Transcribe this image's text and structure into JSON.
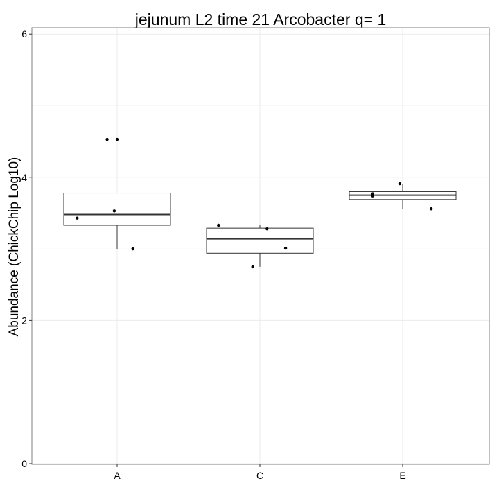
{
  "chart_data": {
    "type": "box",
    "title": "jejunum L2 time 21 Arcobacter q= 1",
    "xlabel": "",
    "ylabel": "Abundance (ChickChip Log10)",
    "categories": [
      "A",
      "C",
      "E"
    ],
    "ylim": [
      0,
      6
    ],
    "yticks": [
      0,
      2,
      4,
      6
    ],
    "grid": true,
    "boxes": [
      {
        "category": "A",
        "whisker_low": 3.0,
        "q1": 3.33,
        "median": 3.48,
        "q3": 3.78,
        "whisker_high": 3.78
      },
      {
        "category": "C",
        "whisker_low": 2.75,
        "q1": 2.94,
        "median": 3.14,
        "q3": 3.29,
        "whisker_high": 3.33
      },
      {
        "category": "E",
        "whisker_low": 3.56,
        "q1": 3.69,
        "median": 3.75,
        "q3": 3.8,
        "whisker_high": 3.91
      }
    ],
    "points": [
      {
        "category": "A",
        "jitter": -0.28,
        "y": 3.43
      },
      {
        "category": "A",
        "jitter": -0.07,
        "y": 4.53
      },
      {
        "category": "A",
        "jitter": 0.0,
        "y": 4.53
      },
      {
        "category": "A",
        "jitter": -0.02,
        "y": 3.53
      },
      {
        "category": "A",
        "jitter": 0.11,
        "y": 3.0
      },
      {
        "category": "C",
        "jitter": -0.29,
        "y": 3.33
      },
      {
        "category": "C",
        "jitter": -0.05,
        "y": 2.75
      },
      {
        "category": "C",
        "jitter": 0.05,
        "y": 3.28
      },
      {
        "category": "C",
        "jitter": 0.18,
        "y": 3.01
      },
      {
        "category": "E",
        "jitter": -0.21,
        "y": 3.74
      },
      {
        "category": "E",
        "jitter": -0.21,
        "y": 3.77
      },
      {
        "category": "E",
        "jitter": -0.02,
        "y": 3.91
      },
      {
        "category": "E",
        "jitter": 0.2,
        "y": 3.56
      }
    ]
  }
}
